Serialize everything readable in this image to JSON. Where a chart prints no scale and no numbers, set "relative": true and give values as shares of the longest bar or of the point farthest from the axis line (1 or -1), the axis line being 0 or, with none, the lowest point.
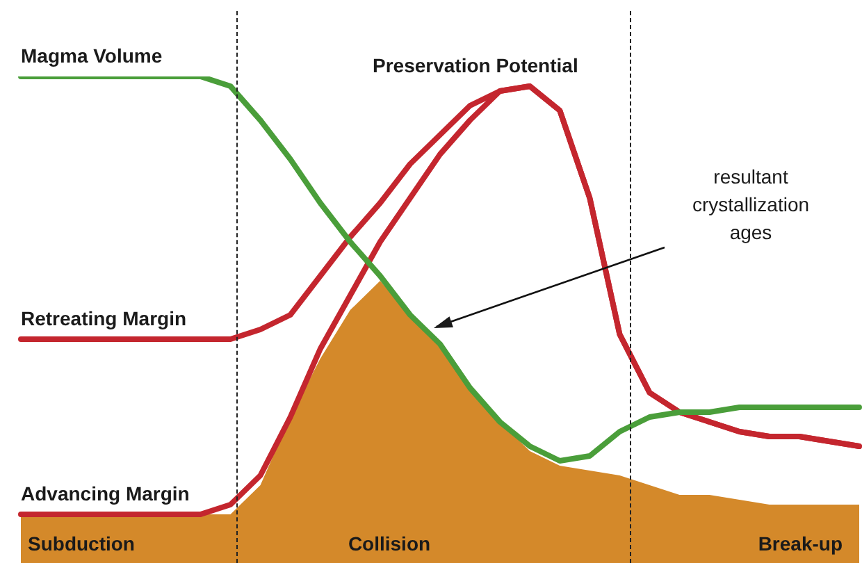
{
  "chart_data": {
    "type": "line",
    "relative": true,
    "marker": "none",
    "line_style": "solid",
    "categories": [
      null,
      null,
      null,
      null,
      null,
      null,
      null,
      null,
      null,
      null,
      null,
      null,
      null,
      null,
      null,
      null,
      null,
      null,
      null,
      null,
      null,
      null,
      null,
      null,
      null,
      null,
      null,
      null,
      null
    ],
    "series": [
      {
        "type": "area",
        "color": "#d4892a",
        "values": [
          0.1,
          0.1,
          0.1,
          0.1,
          0.1,
          0.1,
          0.1,
          0.1,
          0.16,
          0.3,
          0.42,
          0.52,
          0.58,
          0.51,
          0.45,
          0.36,
          0.29,
          0.23,
          0.2,
          0.19,
          0.18,
          0.16,
          0.14,
          0.14,
          0.13,
          0.12,
          0.12,
          0.12,
          0.12
        ]
      },
      {
        "name": "Magma Volume",
        "color": "#4a9e3a",
        "values": [
          1,
          1,
          1,
          1,
          1,
          1,
          1,
          0.98,
          0.91,
          0.83,
          0.74,
          0.66,
          0.59,
          0.51,
          0.45,
          0.36,
          0.29,
          0.24,
          0.21,
          0.22,
          0.27,
          0.3,
          0.31,
          0.31,
          0.32,
          0.32,
          0.32,
          0.32,
          0.32
        ]
      },
      {
        "name": "Retreating Margin",
        "color": "#c4262e",
        "values": [
          0.46,
          0.46,
          0.46,
          0.46,
          0.46,
          0.46,
          0.46,
          0.46,
          0.48,
          0.51,
          0.59,
          0.67,
          0.74,
          0.82,
          0.88,
          0.94,
          0.97,
          0.98,
          0.93,
          0.75,
          0.47,
          0.35,
          0.31,
          0.29,
          0.27,
          0.26,
          0.26,
          0.25,
          0.24
        ]
      },
      {
        "name": "Advancing Margin",
        "color": "#c4262e",
        "values": [
          0.1,
          0.1,
          0.1,
          0.1,
          0.1,
          0.1,
          0.1,
          0.12,
          0.18,
          0.3,
          0.44,
          0.55,
          0.66,
          0.75,
          0.84,
          0.91,
          0.97,
          0.98,
          0.93,
          0.75,
          0.47,
          0.35,
          0.31,
          0.29,
          0.27,
          0.26,
          0.26,
          0.25,
          0.24
        ]
      }
    ],
    "annotations": [
      "Preservation Potential",
      "resultant crystallization ages",
      "Subduction",
      "Collision",
      "Break-up"
    ]
  }
}
